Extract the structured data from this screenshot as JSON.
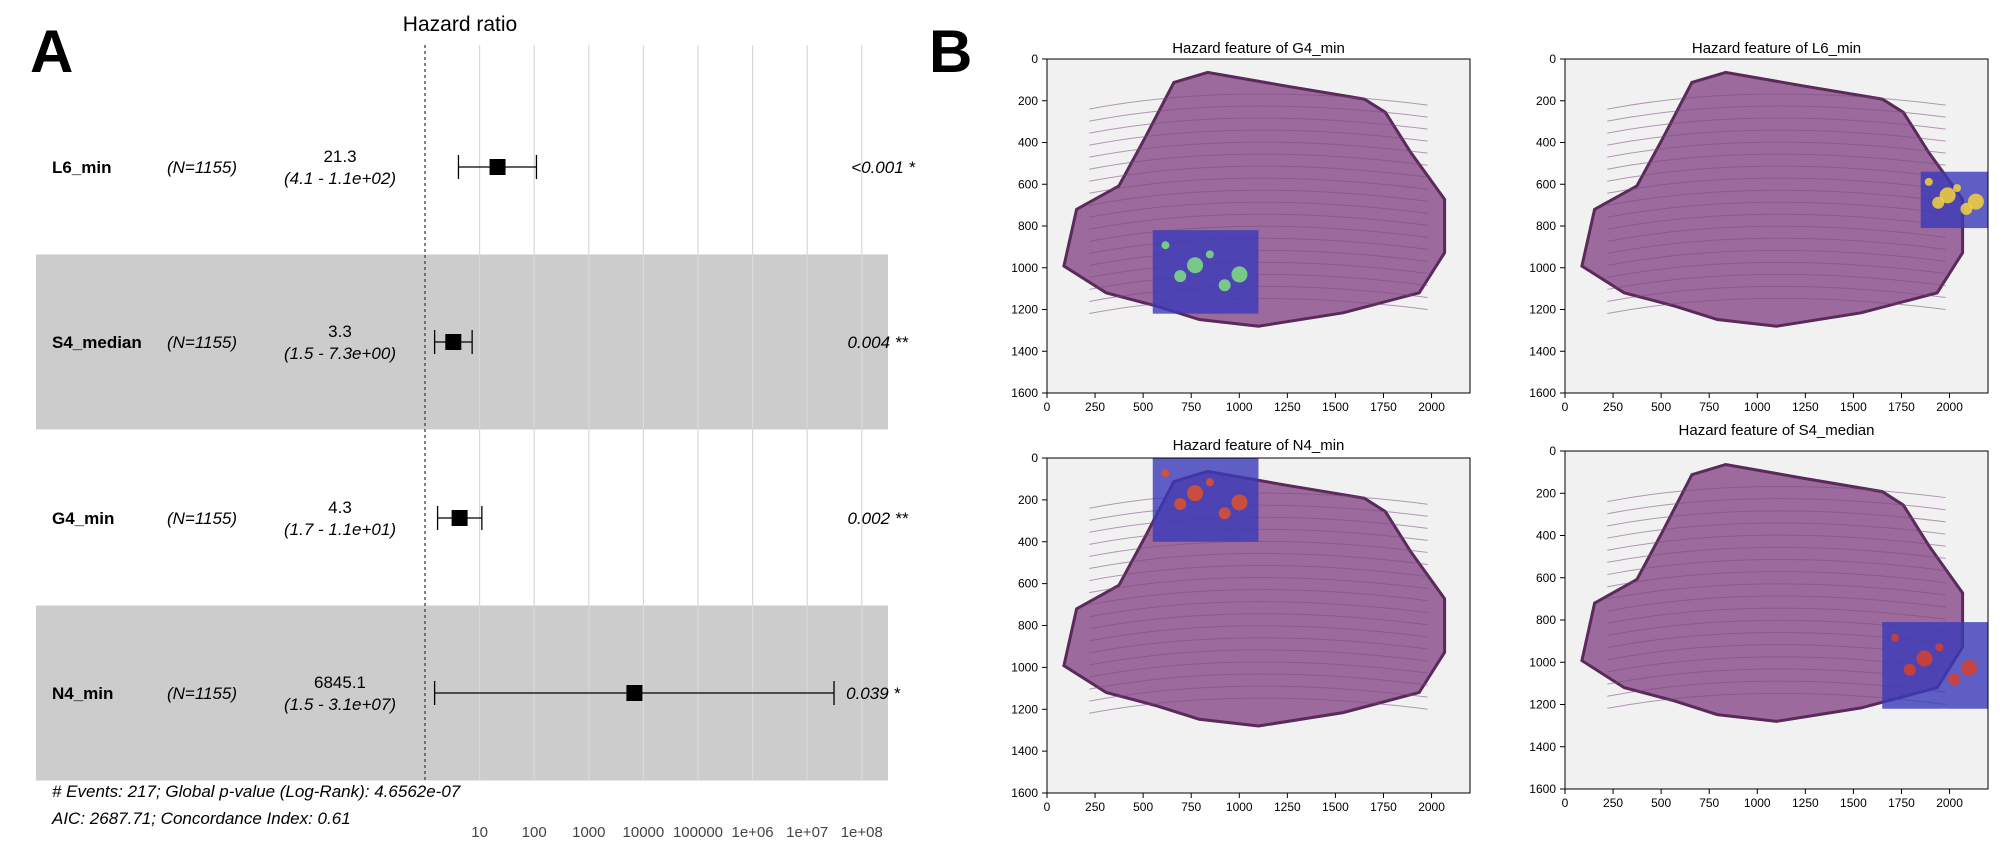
{
  "panel_a": {
    "label": "A",
    "header": "Hazard ratio",
    "x_ticks": [
      "10",
      "100",
      "1000",
      "10000",
      "100000",
      "1e+06",
      "1e+07",
      "1e+08"
    ],
    "rows": [
      {
        "name": "L6_min",
        "n": "(N=1155)",
        "hr_text": "21.3",
        "ci_text": "(4.1 - 1.1e+02)",
        "p_text": "<0.001 *",
        "shaded": false
      },
      {
        "name": "S4_median",
        "n": "(N=1155)",
        "hr_text": "3.3",
        "ci_text": "(1.5 - 7.3e+00)",
        "p_text": "0.004 **",
        "shaded": true
      },
      {
        "name": "G4_min",
        "n": "(N=1155)",
        "hr_text": "4.3",
        "ci_text": "(1.7 - 1.1e+01)",
        "p_text": "0.002 **",
        "shaded": false
      },
      {
        "name": "N4_min",
        "n": "(N=1155)",
        "hr_text": "6845.1",
        "ci_text": "(1.5 - 3.1e+07)",
        "p_text": "0.039 *",
        "shaded": true
      }
    ],
    "footer_line1": "# Events: 217; Global p-value (Log-Rank): 4.6562e-07",
    "footer_line2": "AIC: 2687.71; Concordance Index: 0.61"
  },
  "panel_b": {
    "label": "B",
    "x_ticks": [
      "0",
      "250",
      "500",
      "750",
      "1000",
      "1250",
      "1500",
      "1750",
      "2000"
    ],
    "y_ticks": [
      "0",
      "200",
      "400",
      "600",
      "800",
      "1000",
      "1200",
      "1400",
      "1600"
    ],
    "tiles": [
      {
        "title": "Hazard feature of G4_min",
        "hotspot_color": "#7fe07f"
      },
      {
        "title": "Hazard feature of L6_min",
        "hotspot_color": "#f5d23c"
      },
      {
        "title": "Hazard feature of N4_min",
        "hotspot_color": "#e0502a"
      },
      {
        "title": "Hazard feature of S4_median",
        "hotspot_color": "#d8402a"
      }
    ]
  },
  "colors": {
    "shade": "#cccccc",
    "grid": "#d9d9d9",
    "tissue": "#9d6a9d",
    "tissue_dark": "#5a2a5a",
    "overlay": "#3a3ab8"
  },
  "chart_data": [
    {
      "type": "forest",
      "title": "Hazard ratio",
      "x_scale": "log10",
      "xlim": [
        1,
        300000000
      ],
      "reference_line": 1,
      "categories": [
        "L6_min",
        "S4_median",
        "G4_min",
        "N4_min"
      ],
      "values": [
        21.3,
        3.3,
        4.3,
        6845.1
      ],
      "ci_low": [
        4.1,
        1.5,
        1.7,
        1.5
      ],
      "ci_high": [
        110,
        7.3,
        11,
        31000000
      ],
      "p_values": [
        "<0.001",
        "0.004",
        "0.002",
        "0.039"
      ],
      "n": [
        1155,
        1155,
        1155,
        1155
      ]
    },
    {
      "type": "heatmap",
      "title": "Hazard feature of G4_min",
      "xlim": [
        0,
        2200
      ],
      "ylim": [
        1600,
        0
      ],
      "highlight_region": {
        "x": [
          550,
          1100
        ],
        "y": [
          820,
          1220
        ]
      }
    },
    {
      "type": "heatmap",
      "title": "Hazard feature of L6_min",
      "xlim": [
        0,
        2200
      ],
      "ylim": [
        1600,
        0
      ],
      "highlight_region": {
        "x": [
          1850,
          2200
        ],
        "y": [
          540,
          810
        ]
      }
    },
    {
      "type": "heatmap",
      "title": "Hazard feature of N4_min",
      "xlim": [
        0,
        2200
      ],
      "ylim": [
        1600,
        0
      ],
      "highlight_region": {
        "x": [
          550,
          1100
        ],
        "y": [
          0,
          400
        ]
      }
    },
    {
      "type": "heatmap",
      "title": "Hazard feature of S4_median",
      "xlim": [
        0,
        2200
      ],
      "ylim": [
        1600,
        0
      ],
      "highlight_region": {
        "x": [
          1650,
          2200
        ],
        "y": [
          810,
          1220
        ]
      }
    }
  ]
}
